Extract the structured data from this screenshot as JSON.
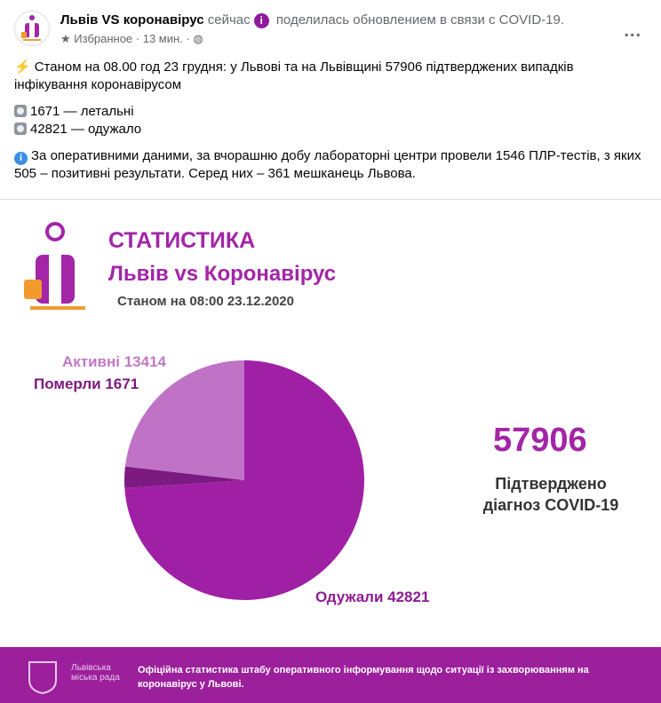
{
  "post": {
    "author": "Львів VS коронавірус",
    "time_now": "сейчас",
    "action": "поделилась обновлением в связи с COVID-19.",
    "favorites": "Избранное",
    "age": "13 мин.",
    "more": "..."
  },
  "body": {
    "line1": "Станом на 08.00 год 23 грудня: у Львові та на Львівщині 57906 підтверджених випадків інфікування коронавірусом",
    "dead": "1671 — летальні",
    "recovered": "42821 — одужало",
    "info": "За оперативними даними, за вчорашню добу лабораторні центри провели 1546 ПЛР-тестів, з яких 505 – позитивні результати. Серед них – 361 мешканець Львова."
  },
  "infographic": {
    "title": "СТАТИСТИКА",
    "subtitle": "Львів vs Коронавірус",
    "date": "Станом на 08:00 23.12.2020",
    "total": "57906",
    "total_label": "Підтверджено діагноз COVID-19",
    "footer_text": "Офіційна статистика штабу оперативного інформування щодо ситуації із захворюванням на коронавірус у Львові.",
    "footer_logo": "Львівська міська рада"
  },
  "chart_data": {
    "type": "pie",
    "slices": [
      {
        "name": "Одужали",
        "value": 42821,
        "label": "Одужали 42821",
        "color": "#a020a5"
      },
      {
        "name": "Померли",
        "value": 1671,
        "label": "Померли 1671",
        "color": "#7b1a80"
      },
      {
        "name": "Активні",
        "value": 13414,
        "label": "Активні 13414",
        "color": "#bf72c6"
      }
    ]
  }
}
